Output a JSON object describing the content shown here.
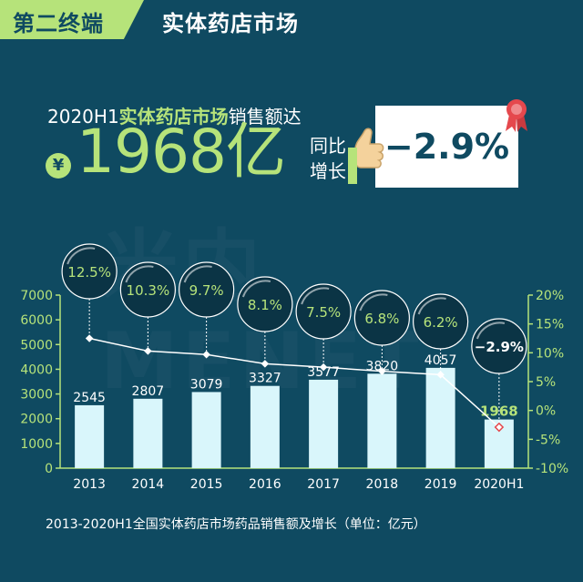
{
  "header": {
    "tag": "第二终端",
    "title": "实体药店市场"
  },
  "headline": {
    "prefix": "2020H1",
    "highlight": "实体药店市场",
    "suffix": "销售额达",
    "currency_symbol": "¥",
    "value": "1968亿",
    "yoy_label_line1": "同比",
    "yoy_label_line2": "增长",
    "yoy_value": "−2.9%"
  },
  "watermark": "米内MENET",
  "caption": "2013-2020H1全国实体药店市场药品销售额及增长（单位：亿元）",
  "colors": {
    "background": "#0f4a61",
    "accent_green": "#b6e37a",
    "bar_fill": "#d9f6fb",
    "bubble_fill": "#0b3445",
    "bubble_highlight": "#ffffff",
    "line": "#ffffff",
    "negative_marker": "#e5484d"
  },
  "icons": [
    "yuan-icon",
    "thumbs-up-hand-icon",
    "award-ribbon-icon"
  ],
  "chart_data": {
    "type": "bar",
    "categories": [
      "2013",
      "2014",
      "2015",
      "2016",
      "2017",
      "2018",
      "2019",
      "2020H1"
    ],
    "series": [
      {
        "values": [
          2545,
          2807,
          3079,
          3327,
          3577,
          3820,
          4057,
          1968
        ]
      },
      {
        "values": [
          12.5,
          10.3,
          9.7,
          8.1,
          7.5,
          6.8,
          6.2,
          -2.9
        ]
      }
    ],
    "value_labels": [
      "2545",
      "2807",
      "3079",
      "3327",
      "3577",
      "3820",
      "4057",
      "1968"
    ],
    "growth_labels": [
      "12.5%",
      "10.3%",
      "9.7%",
      "8.1%",
      "7.5%",
      "6.8%",
      "6.2%",
      "−2.9%"
    ],
    "ylim_left": [
      0,
      7000
    ],
    "yticks_left": [
      "0",
      "1000",
      "2000",
      "3000",
      "4000",
      "5000",
      "6000",
      "7000"
    ],
    "ylim_right": [
      -10,
      20
    ],
    "yticks_right": [
      "-10%",
      "-5%",
      "0%",
      "5%",
      "10%",
      "15%",
      "20%"
    ],
    "grid": false
  }
}
